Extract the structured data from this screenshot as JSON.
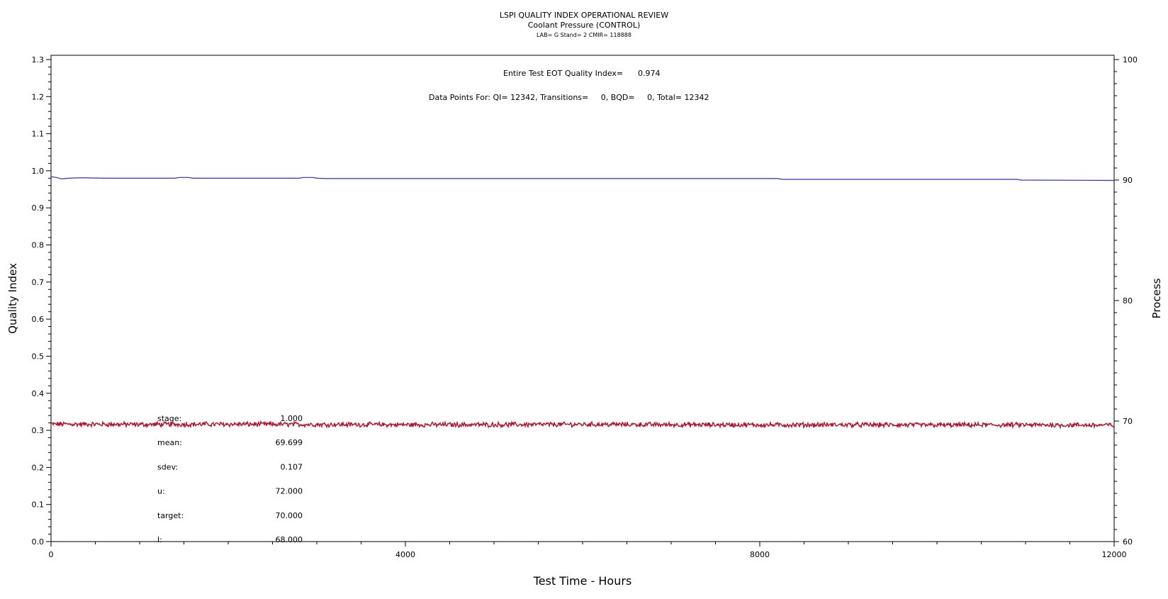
{
  "header": {
    "title": "LSPI QUALITY INDEX OPERATIONAL REVIEW",
    "subtitle": "Coolant Pressure (CONTROL)",
    "info": "LAB= G Stand= 2 CMIR= 118888"
  },
  "annotations": {
    "eot_label": "Entire Test EOT Quality Index=",
    "eot_value": "0.974",
    "points_line": "Data Points For: QI= 12342, Transitions=     0, BQD=     0, Total= 12342"
  },
  "stats": [
    {
      "label": "stage:",
      "value": "1.000"
    },
    {
      "label": "mean:",
      "value": "69.699"
    },
    {
      "label": "sdev:",
      "value": "0.107"
    },
    {
      "label": "u:",
      "value": "72.000"
    },
    {
      "label": "target:",
      "value": "70.000"
    },
    {
      "label": "l:",
      "value": "68.000"
    }
  ],
  "colors": {
    "quality_line": "#2b33b8",
    "process_line": "#b0102a",
    "axis": "#000000"
  },
  "chart_data": {
    "type": "line",
    "xlabel": "Test Time - Hours",
    "ylabel": "Quality Index",
    "y2label": "Process",
    "xlim": [
      0,
      12000
    ],
    "ylim": [
      0,
      1.3
    ],
    "y2lim": [
      60,
      100
    ],
    "x_ticks": [
      0,
      4000,
      8000,
      12000
    ],
    "y_ticks": [
      "0.0",
      "0.1",
      "0.2",
      "0.3",
      "0.4",
      "0.5",
      "0.6",
      "0.7",
      "0.8",
      "0.9",
      "1.0",
      "1.1",
      "1.2",
      "1.3"
    ],
    "y2_ticks": [
      "60",
      "70",
      "80",
      "90",
      "100"
    ],
    "grid": false,
    "series": [
      {
        "axis": "left",
        "x": [
          0,
          60,
          120,
          200,
          300,
          400,
          600,
          1400,
          1450,
          1550,
          1600,
          2800,
          2850,
          2950,
          3000,
          3100,
          8000,
          8200,
          8250,
          10900,
          10950,
          12000
        ],
        "values": [
          0.984,
          0.982,
          0.978,
          0.98,
          0.981,
          0.981,
          0.98,
          0.98,
          0.982,
          0.982,
          0.98,
          0.98,
          0.982,
          0.982,
          0.98,
          0.979,
          0.979,
          0.979,
          0.977,
          0.977,
          0.975,
          0.974
        ]
      },
      {
        "axis": "right",
        "x": [
          0,
          1000,
          2000,
          3000,
          4000,
          5000,
          6000,
          7000,
          8000,
          9000,
          10000,
          11000,
          12000
        ],
        "values": [
          69.75,
          69.72,
          69.74,
          69.72,
          69.7,
          69.7,
          69.73,
          69.7,
          69.68,
          69.69,
          69.67,
          69.68,
          69.66
        ]
      }
    ]
  }
}
